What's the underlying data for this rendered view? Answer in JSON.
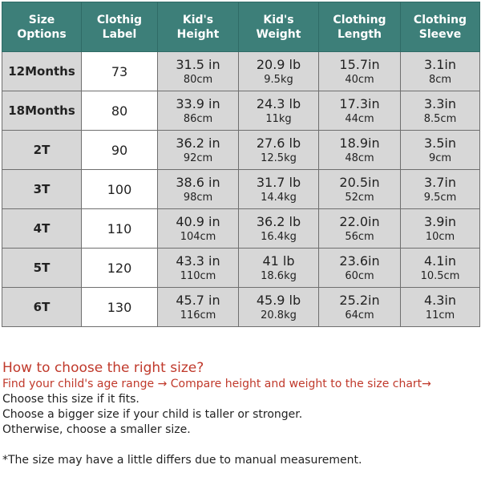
{
  "table": {
    "headers": [
      [
        "Size",
        "Options"
      ],
      [
        "Clothig",
        "Label"
      ],
      [
        "Kid's",
        "Height"
      ],
      [
        "Kid's",
        "Weight"
      ],
      [
        "Clothing",
        "Length"
      ],
      [
        "Clothing",
        "Sleeve"
      ]
    ],
    "rows": [
      {
        "size": "12Months",
        "label": "73",
        "height": [
          "31.5 in",
          "80cm"
        ],
        "weight": [
          "20.9 lb",
          "9.5kg"
        ],
        "length": [
          "15.7in",
          "40cm"
        ],
        "sleeve": [
          "3.1in",
          "8cm"
        ]
      },
      {
        "size": "18Months",
        "label": "80",
        "height": [
          "33.9 in",
          "86cm"
        ],
        "weight": [
          "24.3 lb",
          "11kg"
        ],
        "length": [
          "17.3in",
          "44cm"
        ],
        "sleeve": [
          "3.3in",
          "8.5cm"
        ]
      },
      {
        "size": "2T",
        "label": "90",
        "height": [
          "36.2 in",
          "92cm"
        ],
        "weight": [
          "27.6 lb",
          "12.5kg"
        ],
        "length": [
          "18.9in",
          "48cm"
        ],
        "sleeve": [
          "3.5in",
          "9cm"
        ]
      },
      {
        "size": "3T",
        "label": "100",
        "height": [
          "38.6 in",
          "98cm"
        ],
        "weight": [
          "31.7 lb",
          "14.4kg"
        ],
        "length": [
          "20.5in",
          "52cm"
        ],
        "sleeve": [
          "3.7in",
          "9.5cm"
        ]
      },
      {
        "size": "4T",
        "label": "110",
        "height": [
          "40.9 in",
          "104cm"
        ],
        "weight": [
          "36.2 lb",
          "16.4kg"
        ],
        "length": [
          "22.0in",
          "56cm"
        ],
        "sleeve": [
          "3.9in",
          "10cm"
        ]
      },
      {
        "size": "5T",
        "label": "120",
        "height": [
          "43.3 in",
          "110cm"
        ],
        "weight": [
          "41 lb",
          "18.6kg"
        ],
        "length": [
          "23.6in",
          "60cm"
        ],
        "sleeve": [
          "4.1in",
          "10.5cm"
        ]
      },
      {
        "size": "6T",
        "label": "130",
        "height": [
          "45.7 in",
          "116cm"
        ],
        "weight": [
          "45.9 lb",
          "20.8kg"
        ],
        "length": [
          "25.2in",
          "64cm"
        ],
        "sleeve": [
          "4.3in",
          "11cm"
        ]
      }
    ]
  },
  "notes": {
    "question": "How to choose the right size?",
    "find": "Find your child's age range → Compare height and weight to the size chart→",
    "lines": [
      "Choose this size if it fits.",
      "Choose a bigger size if your child is taller or stronger.",
      "Otherwise, choose a smaller size."
    ],
    "disclaimer": "*The size  may have a little differs due to manual measurement."
  },
  "colors": {
    "header_bg": "#3d7f79",
    "cell_grey": "#d7d7d7",
    "note_red": "#c0392b"
  }
}
